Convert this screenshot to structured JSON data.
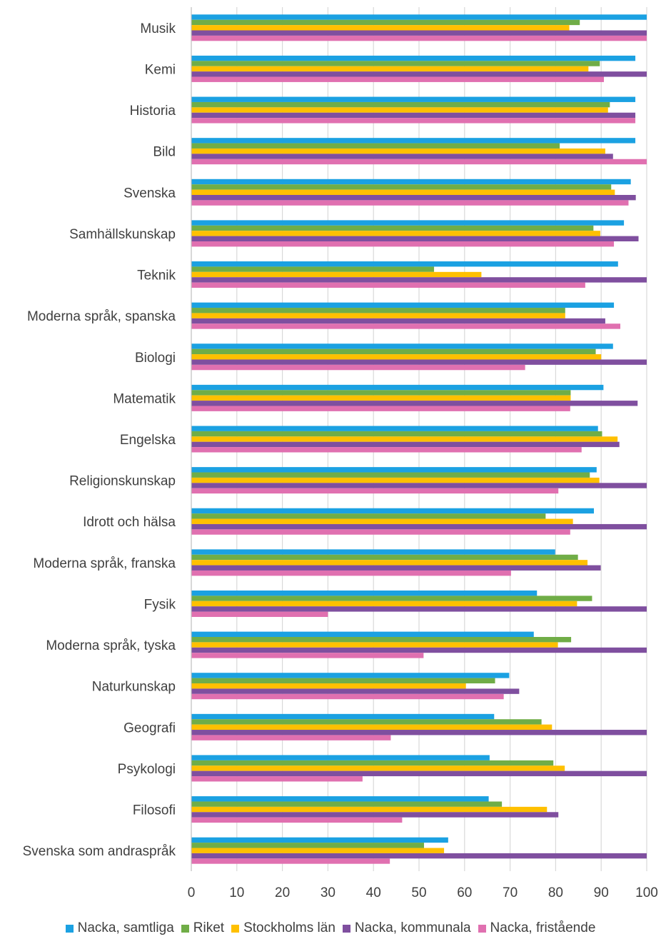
{
  "chart_data": {
    "type": "bar",
    "orientation": "horizontal",
    "categories": [
      "Musik",
      "Kemi",
      "Historia",
      "Bild",
      "Svenska",
      "Samhällskunskap",
      "Teknik",
      "Moderna språk, spanska",
      "Biologi",
      "Matematik",
      "Engelska",
      "Religionskunskap",
      "Idrott och hälsa",
      "Moderna språk, franska",
      "Fysik",
      "Moderna språk, tyska",
      "Naturkunskap",
      "Geografi",
      "Psykologi",
      "Filosofi",
      "Svenska som andraspråk"
    ],
    "series": [
      {
        "name": "Nacka, samtliga",
        "color": "#1ba1e2",
        "values": [
          100,
          97.5,
          97.5,
          97.5,
          96.5,
          95,
          93.7,
          92.8,
          92.6,
          90.5,
          89.3,
          89,
          88.4,
          79.9,
          75.9,
          75.2,
          69.8,
          66.5,
          65.5,
          65.3,
          56.4
        ]
      },
      {
        "name": "Riket",
        "color": "#70ad47",
        "values": [
          85.3,
          89.7,
          91.9,
          80.9,
          92.2,
          88.3,
          53.3,
          82.1,
          88.8,
          83.3,
          90.2,
          87.5,
          77.8,
          84.9,
          88,
          83.4,
          66.7,
          76.9,
          79.5,
          68.2,
          51.1
        ]
      },
      {
        "name": "Stockholms län",
        "color": "#ffc000",
        "values": [
          83,
          87.2,
          91.5,
          90.9,
          93,
          89.8,
          63.7,
          82.1,
          90,
          83.3,
          93.6,
          89.6,
          83.8,
          87,
          84.7,
          80.5,
          60.3,
          79.2,
          82,
          78.1,
          55.5
        ]
      },
      {
        "name": "Nacka, kommunala",
        "color": "#7f4f9f",
        "values": [
          100,
          100,
          97.5,
          92.6,
          97.6,
          98.2,
          100,
          90.9,
          100,
          98,
          94,
          100,
          100,
          89.9,
          100,
          100,
          72,
          100,
          100,
          80.6,
          100
        ]
      },
      {
        "name": "Nacka, fristående",
        "color": "#e070b0",
        "values": [
          100,
          90.6,
          97.5,
          100,
          96,
          92.8,
          86.5,
          94.2,
          73.3,
          83.2,
          85.7,
          80.6,
          83.2,
          70.2,
          30,
          51,
          68.6,
          43.8,
          37.6,
          46.3,
          43.6
        ]
      }
    ],
    "xlim": [
      0,
      100
    ],
    "xticks": [
      "0",
      "10",
      "20",
      "30",
      "40",
      "50",
      "60",
      "70",
      "80",
      "90",
      "100"
    ],
    "grid": "vertical",
    "legend_position": "bottom"
  }
}
